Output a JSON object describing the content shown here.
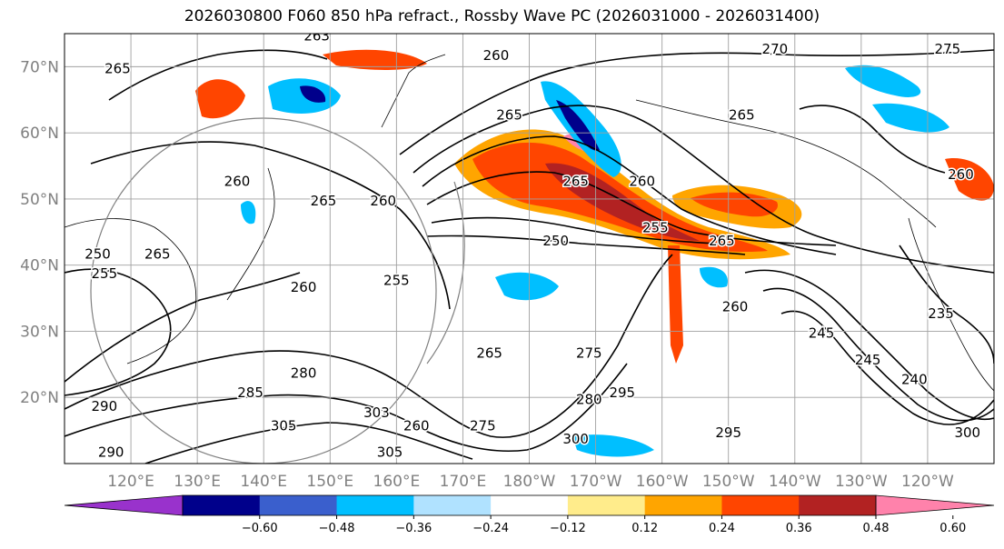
{
  "title": "2026030800 F060 850 hPa refract., Rossby Wave PC (2026031000 - 2026031400)",
  "map": {
    "lat_labels": [
      "70°N",
      "60°N",
      "50°N",
      "40°N",
      "30°N",
      "20°N"
    ],
    "lon_labels": [
      "120°E",
      "130°E",
      "140°E",
      "150°E",
      "160°E",
      "170°E",
      "180°W",
      "170°W",
      "160°W",
      "150°W",
      "140°W",
      "130°W",
      "120°W"
    ],
    "lat_range": [
      10,
      75
    ],
    "lon_range": [
      110,
      250
    ],
    "contour_labels": [
      {
        "text": "265",
        "lon": 118,
        "lat": 69
      },
      {
        "text": "263",
        "lon": 148,
        "lat": 74
      },
      {
        "text": "260",
        "lon": 175,
        "lat": 71
      },
      {
        "text": "270",
        "lon": 217,
        "lat": 72
      },
      {
        "text": "275",
        "lon": 243,
        "lat": 72
      },
      {
        "text": "265",
        "lon": 212,
        "lat": 62
      },
      {
        "text": "260",
        "lon": 245,
        "lat": 53
      },
      {
        "text": "260",
        "lon": 136,
        "lat": 52
      },
      {
        "text": "265",
        "lon": 149,
        "lat": 49
      },
      {
        "text": "260",
        "lon": 158,
        "lat": 49
      },
      {
        "text": "265",
        "lon": 177,
        "lat": 62
      },
      {
        "text": "260",
        "lon": 197,
        "lat": 52
      },
      {
        "text": "265",
        "lon": 187,
        "lat": 52
      },
      {
        "text": "255",
        "lon": 199,
        "lat": 45
      },
      {
        "text": "250",
        "lon": 184,
        "lat": 43
      },
      {
        "text": "265",
        "lon": 209,
        "lat": 43
      },
      {
        "text": "250",
        "lon": 115,
        "lat": 41
      },
      {
        "text": "265",
        "lon": 124,
        "lat": 41
      },
      {
        "text": "255",
        "lon": 116,
        "lat": 38
      },
      {
        "text": "255",
        "lon": 160,
        "lat": 37
      },
      {
        "text": "260",
        "lon": 146,
        "lat": 36
      },
      {
        "text": "260",
        "lon": 211,
        "lat": 33
      },
      {
        "text": "245",
        "lon": 224,
        "lat": 29
      },
      {
        "text": "235",
        "lon": 242,
        "lat": 32
      },
      {
        "text": "245",
        "lon": 231,
        "lat": 25
      },
      {
        "text": "240",
        "lon": 238,
        "lat": 22
      },
      {
        "text": "265",
        "lon": 174,
        "lat": 26
      },
      {
        "text": "275",
        "lon": 189,
        "lat": 26
      },
      {
        "text": "280",
        "lon": 146,
        "lat": 23
      },
      {
        "text": "285",
        "lon": 138,
        "lat": 20
      },
      {
        "text": "290",
        "lon": 116,
        "lat": 18
      },
      {
        "text": "295",
        "lon": 194,
        "lat": 20
      },
      {
        "text": "280",
        "lon": 189,
        "lat": 19
      },
      {
        "text": "303",
        "lon": 157,
        "lat": 17
      },
      {
        "text": "305",
        "lon": 143,
        "lat": 15
      },
      {
        "text": "260",
        "lon": 163,
        "lat": 15
      },
      {
        "text": "275",
        "lon": 173,
        "lat": 15
      },
      {
        "text": "300",
        "lon": 187,
        "lat": 13
      },
      {
        "text": "295",
        "lon": 210,
        "lat": 14
      },
      {
        "text": "300",
        "lon": 246,
        "lat": 14
      },
      {
        "text": "305",
        "lon": 159,
        "lat": 11
      },
      {
        "text": "290",
        "lon": 117,
        "lat": 11
      }
    ]
  },
  "colorbar": {
    "labels": [
      "−0.60",
      "−0.48",
      "−0.36",
      "−0.24",
      "−0.12",
      "0.12",
      "0.24",
      "0.36",
      "0.48",
      "0.60"
    ],
    "colors": [
      "#9932cc",
      "#00008b",
      "#3a5fcd",
      "#00bfff",
      "#b0e2ff",
      "#ffffff",
      "#ffec8b",
      "#ffa500",
      "#ff4500",
      "#b22222",
      "#ff82ab"
    ]
  },
  "colors": {
    "axis_label": "#808080",
    "grid": "#a0a0a0",
    "contour": "#000000"
  }
}
